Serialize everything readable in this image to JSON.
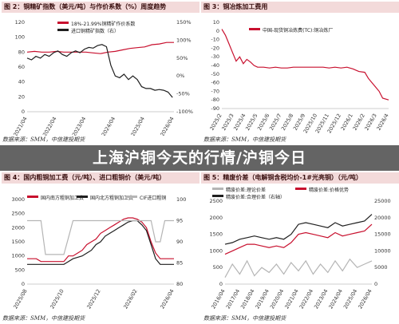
{
  "overlay": {
    "title": "上海沪铜今天的行情/沪铜今日"
  },
  "panels": [
    {
      "title": "图 2：铜精矿指数（美元/吨）与作价系数（%）周度趋势",
      "source": "数据来源：SMM，中信建投期货"
    },
    {
      "title": "图 3：铜冶炼加工费用",
      "source": "数据来源：SMM，中信建投期货"
    },
    {
      "title": "图 4：国内粗铜加工费（元/吨）、进口粗铜价（美元/吨）",
      "source": "数据来源：SMM，中信建投期货"
    },
    {
      "title": "图 5：精废价差（电解铜含税均价-1#光亮铜）（元/吨）",
      "source": "数据来源：SMM，中信建投期货"
    }
  ],
  "chart_data": [
    {
      "type": "line",
      "legend": [
        "18%-21.99%铜精矿作价系数",
        "进口铜精矿指数（右）"
      ],
      "x_ticks": [
        "2021/04",
        "2022/04",
        "2023/04",
        "2024/04",
        "2025/04",
        "2026/04"
      ],
      "y_left_ticks": [
        0,
        20,
        40,
        60,
        80,
        100,
        120
      ],
      "y_right_ticks": [
        "150%",
        "100%",
        "50%",
        "0%",
        "-50%",
        "-100%"
      ],
      "ylim_left": [
        0,
        120
      ],
      "ylim_right": [
        -100,
        150
      ],
      "colors": [
        "#c8102e",
        "#1f1f1f"
      ],
      "series": [
        {
          "name": "18%-21.99%铜精矿作价系数",
          "axis": "left",
          "x": [
            2021.25,
            2021.5,
            2021.75,
            2022.0,
            2022.25,
            2022.5,
            2022.75,
            2023.0,
            2023.25,
            2023.5,
            2023.75,
            2024.0,
            2024.25,
            2024.5,
            2024.75,
            2025.0,
            2025.25,
            2025.5,
            2025.75,
            2026.0,
            2026.25
          ],
          "values": [
            80,
            81,
            80,
            80,
            81,
            80,
            80,
            80,
            80,
            79,
            78,
            80,
            81,
            83,
            85,
            86,
            87,
            90,
            91,
            93,
            93
          ]
        },
        {
          "name": "进口铜精矿指数（右）",
          "axis": "right",
          "x": [
            2021.25,
            2021.4,
            2021.55,
            2021.7,
            2021.85,
            2022.0,
            2022.15,
            2022.3,
            2022.45,
            2022.6,
            2022.75,
            2022.9,
            2023.05,
            2023.2,
            2023.35,
            2023.5,
            2023.65,
            2023.8,
            2023.95,
            2024.1,
            2024.25,
            2024.4,
            2024.55,
            2024.7,
            2024.85,
            2025.0,
            2025.15,
            2025.3,
            2025.45,
            2025.6,
            2025.75,
            2025.9,
            2026.05,
            2026.2
          ],
          "values": [
            50,
            45,
            55,
            50,
            60,
            55,
            65,
            70,
            60,
            55,
            65,
            70,
            65,
            75,
            80,
            78,
            85,
            88,
            82,
            30,
            0,
            -5,
            5,
            -10,
            0,
            -10,
            -30,
            -35,
            -35,
            -40,
            -38,
            -40,
            -45,
            -60
          ]
        }
      ]
    },
    {
      "type": "line",
      "legend": [
        "中国-现货铜冶炼费(TC):铜冶炼厂"
      ],
      "x_ticks": [
        "2025/2",
        "2025/3",
        "2025/4",
        "2025/5",
        "2025/6",
        "2025/7",
        "2025/8",
        "2025/9",
        "2025/10",
        "2025/11",
        "2025/12",
        "2026/1",
        "2026/2",
        "2026/3",
        "2026/4"
      ],
      "y_ticks": [
        10,
        0,
        -10,
        -20,
        -30,
        -40,
        -50,
        -60,
        -70,
        -80,
        -90
      ],
      "ylim": [
        -90,
        10
      ],
      "colors": [
        "#c8102e"
      ],
      "series": [
        {
          "name": "中国-现货铜冶炼费(TC):铜冶炼厂",
          "x": [
            0,
            0.3,
            0.6,
            0.9,
            1.2,
            1.5,
            1.8,
            2.1,
            2.4,
            2.7,
            3.0,
            3.5,
            4.0,
            4.5,
            5.0,
            5.5,
            6.0,
            6.5,
            7.0,
            7.5,
            8.0,
            8.5,
            9.0,
            9.5,
            10.0,
            10.5,
            11.0,
            11.5,
            12.0,
            12.3,
            12.6,
            12.9,
            13.2,
            13.5,
            14.0
          ],
          "values": [
            2,
            -5,
            -15,
            -25,
            -35,
            -30,
            -38,
            -33,
            -36,
            -40,
            -42,
            -42,
            -43,
            -42,
            -43,
            -43,
            -42,
            -42,
            -42,
            -42,
            -42,
            -42,
            -43,
            -42,
            -43,
            -42,
            -44,
            -47,
            -48,
            -55,
            -60,
            -65,
            -70,
            -78,
            -80
          ]
        }
      ]
    },
    {
      "type": "line",
      "legend": [
        "国内南方粗铜加工费",
        "国内北方粗铜加工费",
        "CIF进口粗铜"
      ],
      "x_ticks": [
        "2025/08",
        "2025/10",
        "2025/12",
        "2026/02",
        "2026/04"
      ],
      "y_left_ticks": [
        3000,
        2500,
        2000,
        1500,
        1000,
        500,
        0
      ],
      "y_right_ticks": [
        100,
        95,
        90,
        85,
        80
      ],
      "ylim_left": [
        0,
        3000
      ],
      "ylim_right": [
        80,
        100
      ],
      "colors": [
        "#c8102e",
        "#1f1f1f",
        "#b5b5b5"
      ],
      "series": [
        {
          "name": "国内南方粗铜加工费",
          "axis": "left",
          "x": [
            0,
            0.5,
            1,
            1.5,
            2,
            2.5,
            3,
            3.5,
            4,
            4.5,
            5,
            5.5,
            6,
            6.5,
            7,
            7.5,
            8,
            8.5,
            9,
            9.5,
            10,
            10.5,
            11,
            11.5,
            12,
            12.5,
            13,
            13.5,
            14,
            14.5,
            15,
            15.5,
            16
          ],
          "values": [
            900,
            900,
            900,
            800,
            800,
            800,
            800,
            800,
            800,
            1000,
            1000,
            1100,
            1200,
            1400,
            1500,
            1600,
            1800,
            1900,
            2000,
            2100,
            2200,
            2300,
            2350,
            2350,
            2300,
            2200,
            2000,
            1500,
            1100,
            900,
            900,
            900,
            900
          ]
        },
        {
          "name": "国内北方粗铜加工费",
          "axis": "left",
          "x": [
            0,
            0.5,
            1,
            1.5,
            2,
            2.5,
            3,
            3.5,
            4,
            4.5,
            5,
            5.5,
            6,
            6.5,
            7,
            7.5,
            8,
            8.5,
            9,
            9.5,
            10,
            10.5,
            11,
            11.5,
            12,
            12.5,
            13,
            13.5,
            14,
            14.5,
            15,
            15.5,
            16
          ],
          "values": [
            700,
            700,
            700,
            700,
            700,
            700,
            700,
            700,
            700,
            800,
            900,
            950,
            1000,
            1100,
            1200,
            1400,
            1500,
            1700,
            1800,
            1900,
            2000,
            2100,
            2200,
            2250,
            2250,
            2100,
            1900,
            1400,
            900,
            700,
            700,
            700,
            700
          ]
        },
        {
          "name": "CIF进口粗铜",
          "axis": "right",
          "x": [
            0,
            0.5,
            1,
            1.5,
            2,
            2.5,
            3,
            3.5,
            4,
            4.5,
            5,
            5.5,
            6,
            6.5,
            7,
            7.5,
            8,
            8.5,
            9,
            9.5,
            10,
            10.5,
            11,
            11.5,
            12,
            12.5,
            13,
            13.5,
            14,
            14.5,
            15,
            15.5,
            16
          ],
          "values": [
            95,
            95,
            95,
            95,
            87,
            87,
            87,
            87,
            87,
            91,
            95,
            95,
            95,
            95,
            95,
            95,
            95,
            95,
            95,
            95,
            95,
            95,
            95,
            95,
            95,
            95,
            95,
            95,
            90,
            90,
            95,
            95,
            95
          ]
        }
      ]
    },
    {
      "type": "line",
      "legend": [
        "精废价差:理论价差",
        "精废价差:价格优势",
        "精废价差:合理价差（右轴）"
      ],
      "x_ticks": [
        "2016/04",
        "2017/04",
        "2018/04",
        "2019/04",
        "2020/04",
        "2021/04",
        "2022/04",
        "2023/04",
        "2024/04",
        "2025/04",
        "2026/04"
      ],
      "y_left_ticks": [
        2500,
        2000,
        1500,
        1000,
        500,
        0
      ],
      "y_right_ticks": [
        25000,
        20000,
        15000,
        10000,
        5000,
        0
      ],
      "ylim_left": [
        0,
        2500
      ],
      "ylim_right": [
        0,
        25000
      ],
      "colors": [
        "#b5b5b5",
        "#c8102e",
        "#1f1f1f"
      ],
      "series": [
        {
          "name": "精废价差:理论价差",
          "axis": "left",
          "x": [
            2016.3,
            2016.8,
            2017.3,
            2017.8,
            2018.3,
            2018.8,
            2019.3,
            2019.8,
            2020.3,
            2020.8,
            2021.3,
            2021.8,
            2022.3,
            2022.8,
            2023.3,
            2023.8,
            2024.3,
            2024.8,
            2025.3,
            2025.8,
            2026.3
          ],
          "values": [
            200,
            600,
            300,
            700,
            250,
            500,
            350,
            600,
            300,
            650,
            400,
            700,
            300,
            600,
            350,
            700,
            400,
            750,
            500,
            600,
            700
          ]
        },
        {
          "name": "精废价差:价格优势",
          "axis": "left",
          "x": [
            2016.3,
            2016.8,
            2017.3,
            2017.8,
            2018.3,
            2018.8,
            2019.3,
            2019.8,
            2020.3,
            2020.8,
            2021.3,
            2021.8,
            2022.3,
            2022.8,
            2023.3,
            2023.8,
            2024.3,
            2024.8,
            2025.3,
            2025.8,
            2026.3
          ],
          "values": [
            900,
            1000,
            1100,
            1200,
            1200,
            1150,
            1100,
            1150,
            1100,
            1250,
            1500,
            1550,
            1500,
            1450,
            1400,
            1550,
            1450,
            1500,
            1550,
            1600,
            1800
          ]
        },
        {
          "name": "精废价差:合理价差（右轴）",
          "axis": "right",
          "x": [
            2016.3,
            2016.8,
            2017.3,
            2017.8,
            2018.3,
            2018.8,
            2019.3,
            2019.8,
            2020.3,
            2020.8,
            2021.3,
            2021.8,
            2022.3,
            2022.8,
            2023.3,
            2023.8,
            2024.3,
            2024.8,
            2025.3,
            2025.8,
            2026.3
          ],
          "values": [
            12000,
            12500,
            13500,
            14000,
            14500,
            14000,
            13500,
            14000,
            13500,
            15000,
            18000,
            18500,
            18000,
            17500,
            17000,
            18500,
            17500,
            18000,
            18500,
            19000,
            21000
          ]
        }
      ]
    }
  ]
}
